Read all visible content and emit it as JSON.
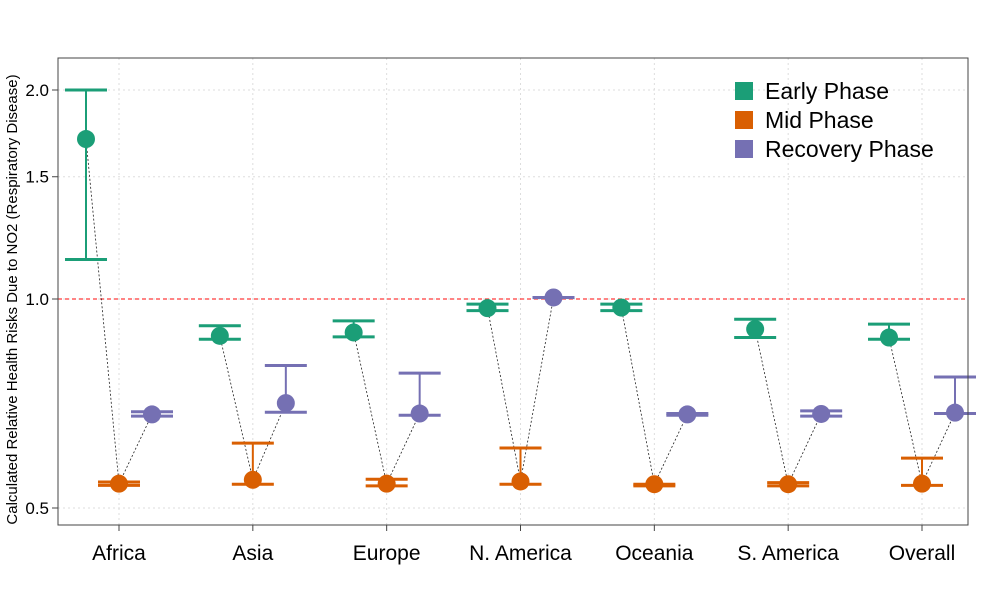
{
  "chart_data": {
    "type": "scatter",
    "title": "",
    "xlabel": "",
    "ylabel": "Calculated Relative Health Risks Due to NO2 (Respiratory Disease)",
    "y_scale": "log",
    "ylim": [
      0.475,
      2.2
    ],
    "yticks": [
      0.5,
      1.0,
      1.5,
      2.0
    ],
    "ytick_labels": [
      "0.5",
      "1.0",
      "1.5",
      "2.0"
    ],
    "reference_line": {
      "y": 1.0,
      "color": "#ff3b3b",
      "style": "dashed"
    },
    "grid": true,
    "legend_position": "top-right",
    "categories": [
      "Africa",
      "Asia",
      "Europe",
      "N. America",
      "Oceania",
      "S. America",
      "Overall"
    ],
    "series": [
      {
        "name": "Early Phase",
        "color": "#1b9e77",
        "values": [
          1.7,
          0.885,
          0.895,
          0.97,
          0.972,
          0.905,
          0.88
        ],
        "lower": [
          1.14,
          0.875,
          0.882,
          0.962,
          0.962,
          0.88,
          0.875
        ],
        "upper": [
          2.0,
          0.915,
          0.93,
          0.983,
          0.983,
          0.935,
          0.92
        ]
      },
      {
        "name": "Mid Phase",
        "color": "#d95f02",
        "values": [
          0.542,
          0.549,
          0.542,
          0.546,
          0.541,
          0.541,
          0.542
        ],
        "lower": [
          0.539,
          0.541,
          0.538,
          0.541,
          0.538,
          0.538,
          0.539
        ],
        "upper": [
          0.545,
          0.62,
          0.55,
          0.61,
          0.541,
          0.544,
          0.59
        ]
      },
      {
        "name": "Recovery Phase",
        "color": "#7570b3",
        "values": [
          0.682,
          0.708,
          0.684,
          1.005,
          0.682,
          0.683,
          0.686
        ],
        "lower": [
          0.678,
          0.687,
          0.68,
          1.005,
          0.68,
          0.678,
          0.684
        ],
        "upper": [
          0.688,
          0.802,
          0.782,
          1.005,
          0.684,
          0.69,
          0.772
        ]
      }
    ]
  }
}
